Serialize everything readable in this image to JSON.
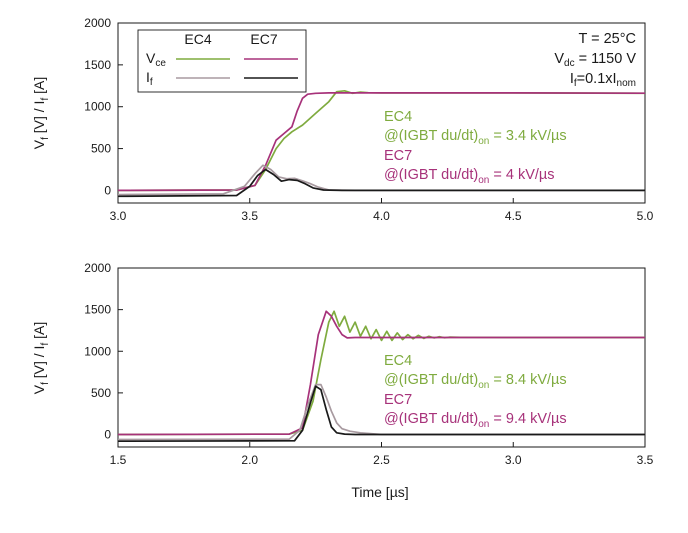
{
  "chart_data": [
    {
      "type": "line",
      "panel": "top",
      "xlim": [
        3.0,
        5.0
      ],
      "ylim": [
        -150,
        2000
      ],
      "xticks": [
        "3.0",
        "3.5",
        "4.0",
        "4.5",
        "5.0"
      ],
      "yticks": [
        "0",
        "500",
        "1000",
        "1500",
        "2000"
      ],
      "xticks_values": [
        3.0,
        3.5,
        4.0,
        4.5,
        5.0
      ],
      "yticks_values": [
        0,
        500,
        1000,
        1500,
        2000
      ],
      "ylabel_main": "V",
      "ylabel_sub1": "f",
      "ylabel_mid": " [V] / I",
      "ylabel_sub2": "f",
      "ylabel_end": " [A]",
      "legend": {
        "col1": "EC4",
        "col2": "EC7",
        "row1_main": "V",
        "row1_sub": "ce",
        "row2_main": "I",
        "row2_sub": "f"
      },
      "conditions": {
        "line1": "T = 25°C",
        "line2_main": "V",
        "line2_sub": "dc",
        "line2_rest": " = 1150 V",
        "line3_main": "I",
        "line3_sub": "f",
        "line3_mid": "=0.1xI",
        "line3_sub2": "nom"
      },
      "annotations": [
        {
          "text": "EC4",
          "color": "#7fab3f"
        },
        {
          "pre": "@(IGBT du/dt)",
          "sub": "on",
          "post": " = 3.4 kV/µs",
          "color": "#7fab3f"
        },
        {
          "text": "EC7",
          "color": "#a7327a"
        },
        {
          "pre": "@(IGBT du/dt)",
          "sub": "on",
          "post": " = 4 kV/µs",
          "color": "#a7327a"
        }
      ],
      "series": [
        {
          "name": "EC4 Vce",
          "color": "#7fab3f",
          "x": [
            3.0,
            3.45,
            3.52,
            3.56,
            3.6,
            3.63,
            3.66,
            3.7,
            3.75,
            3.8,
            3.83,
            3.86,
            3.89,
            3.92,
            3.95,
            4.0,
            4.5,
            5.0
          ],
          "y": [
            0,
            5,
            60,
            250,
            500,
            620,
            700,
            780,
            920,
            1060,
            1180,
            1190,
            1160,
            1175,
            1168,
            1165,
            1165,
            1160
          ]
        },
        {
          "name": "EC7 Vce",
          "color": "#a7327a",
          "x": [
            3.0,
            3.45,
            3.52,
            3.56,
            3.6,
            3.63,
            3.66,
            3.68,
            3.7,
            3.72,
            3.75,
            3.8,
            3.9,
            4.0,
            4.5,
            5.0
          ],
          "y": [
            0,
            5,
            60,
            300,
            600,
            680,
            760,
            950,
            1100,
            1150,
            1160,
            1165,
            1165,
            1165,
            1165,
            1162
          ]
        },
        {
          "name": "EC4 If",
          "color": "#a89aa0",
          "x": [
            3.0,
            3.4,
            3.48,
            3.52,
            3.55,
            3.58,
            3.61,
            3.64,
            3.67,
            3.7,
            3.73,
            3.76,
            3.8,
            3.9,
            4.0,
            5.0
          ],
          "y": [
            -50,
            -40,
            50,
            200,
            300,
            250,
            160,
            140,
            145,
            115,
            80,
            40,
            5,
            0,
            0,
            0
          ]
        },
        {
          "name": "EC7 If",
          "color": "#1a1a1a",
          "x": [
            3.0,
            3.45,
            3.5,
            3.53,
            3.56,
            3.59,
            3.62,
            3.65,
            3.68,
            3.71,
            3.74,
            3.78,
            3.85,
            4.0,
            5.0
          ],
          "y": [
            -70,
            -60,
            50,
            180,
            250,
            190,
            110,
            130,
            120,
            80,
            30,
            5,
            0,
            0,
            0
          ]
        }
      ]
    },
    {
      "type": "line",
      "panel": "bottom",
      "xlim": [
        1.5,
        3.5
      ],
      "ylim": [
        -150,
        2000
      ],
      "xticks": [
        "1.5",
        "2.0",
        "2.5",
        "3.0",
        "3.5"
      ],
      "yticks": [
        "0",
        "500",
        "1000",
        "1500",
        "2000"
      ],
      "xticks_values": [
        1.5,
        2.0,
        2.5,
        3.0,
        3.5
      ],
      "yticks_values": [
        0,
        500,
        1000,
        1500,
        2000
      ],
      "xlabel": "Time [µs]",
      "ylabel_main": "V",
      "ylabel_sub1": "f",
      "ylabel_mid": " [V] / I",
      "ylabel_sub2": "f",
      "ylabel_end": " [A]",
      "annotations": [
        {
          "text": "EC4",
          "color": "#7fab3f"
        },
        {
          "pre": "@(IGBT du/dt)",
          "sub": "on",
          "post": " = 8.4 kV/µs",
          "color": "#7fab3f"
        },
        {
          "text": "EC7",
          "color": "#a7327a"
        },
        {
          "pre": "@(IGBT du/dt)",
          "sub": "on",
          "post": " = 9.4 kV/µs",
          "color": "#a7327a"
        }
      ],
      "series": [
        {
          "name": "EC4 Vce",
          "color": "#7fab3f",
          "x": [
            1.5,
            2.15,
            2.2,
            2.24,
            2.27,
            2.3,
            2.32,
            2.34,
            2.36,
            2.38,
            2.4,
            2.42,
            2.44,
            2.46,
            2.48,
            2.5,
            2.52,
            2.54,
            2.56,
            2.58,
            2.6,
            2.62,
            2.64,
            2.66,
            2.68,
            2.7,
            2.72,
            2.74,
            2.76,
            2.8,
            3.0,
            3.5
          ],
          "y": [
            0,
            5,
            50,
            400,
            900,
            1350,
            1480,
            1300,
            1420,
            1230,
            1350,
            1180,
            1300,
            1150,
            1260,
            1130,
            1240,
            1130,
            1220,
            1140,
            1200,
            1150,
            1190,
            1155,
            1180,
            1160,
            1175,
            1162,
            1170,
            1168,
            1165,
            1165
          ]
        },
        {
          "name": "EC7 Vce",
          "color": "#a7327a",
          "x": [
            1.5,
            2.15,
            2.2,
            2.23,
            2.26,
            2.29,
            2.31,
            2.33,
            2.35,
            2.37,
            2.4,
            2.5,
            3.0,
            3.5
          ],
          "y": [
            0,
            5,
            80,
            600,
            1200,
            1480,
            1420,
            1300,
            1200,
            1160,
            1165,
            1165,
            1165,
            1165
          ]
        },
        {
          "name": "EC4 If",
          "color": "#a89aa0",
          "x": [
            1.5,
            2.15,
            2.19,
            2.22,
            2.25,
            2.27,
            2.29,
            2.31,
            2.33,
            2.35,
            2.38,
            2.42,
            2.5,
            3.5
          ],
          "y": [
            -60,
            -55,
            50,
            350,
            600,
            600,
            450,
            280,
            140,
            70,
            40,
            20,
            0,
            0
          ]
        },
        {
          "name": "EC7 If",
          "color": "#1a1a1a",
          "x": [
            1.5,
            2.17,
            2.2,
            2.23,
            2.25,
            2.27,
            2.29,
            2.31,
            2.33,
            2.36,
            2.4,
            2.5,
            3.5
          ],
          "y": [
            -80,
            -75,
            50,
            380,
            580,
            540,
            300,
            90,
            20,
            5,
            0,
            0,
            0
          ]
        }
      ]
    }
  ]
}
